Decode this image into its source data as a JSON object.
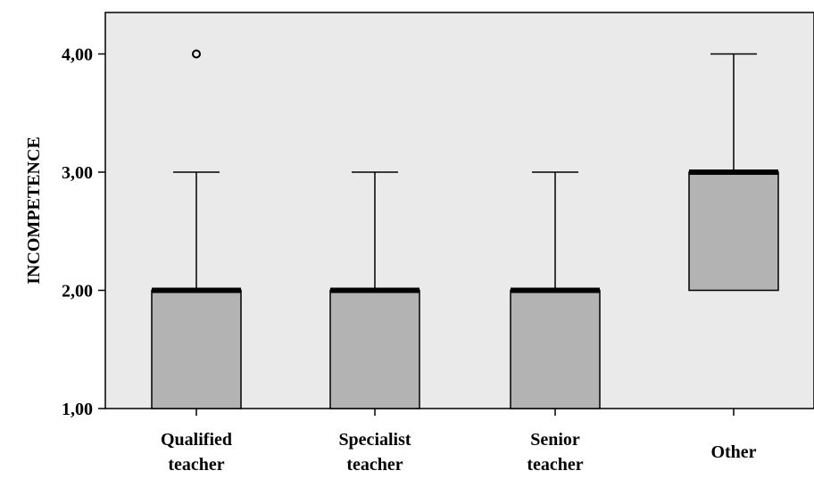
{
  "chart_data": {
    "type": "boxplot",
    "ylabel": "INCOMPETENCE",
    "xlabel": "",
    "title": "",
    "ylim": [
      1.0,
      4.3
    ],
    "y_ticks": [
      {
        "value": 1,
        "label": "1,00"
      },
      {
        "value": 2,
        "label": "2,00"
      },
      {
        "value": 3,
        "label": "3,00"
      },
      {
        "value": 4,
        "label": "4,00"
      }
    ],
    "grid": false,
    "colors": {
      "plot_bg": "#eaeaea",
      "box_fill": "#b3b3b3",
      "stroke": "#000000"
    },
    "categories": [
      {
        "lines": [
          "Qualified",
          "teacher"
        ],
        "min": 1,
        "q1": 1,
        "median": 2,
        "q3": 2,
        "max": 3,
        "outliers": [
          4
        ]
      },
      {
        "lines": [
          "Specialist",
          "teacher"
        ],
        "min": 1,
        "q1": 1,
        "median": 2,
        "q3": 2,
        "max": 3,
        "outliers": []
      },
      {
        "lines": [
          "Senior",
          "teacher"
        ],
        "min": 1,
        "q1": 1,
        "median": 2,
        "q3": 2,
        "max": 3,
        "outliers": []
      },
      {
        "lines": [
          "Other"
        ],
        "min": 2,
        "q1": 2,
        "median": 3,
        "q3": 3,
        "max": 4,
        "outliers": []
      }
    ]
  }
}
